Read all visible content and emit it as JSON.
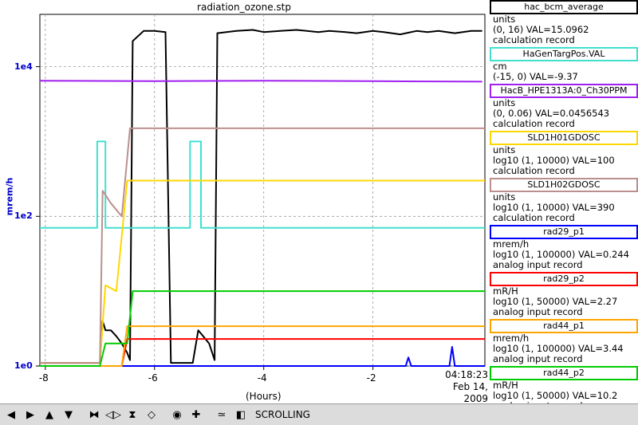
{
  "chart_data": {
    "type": "line",
    "title": "radiation_ozone.stp",
    "xlabel": "(Hours)",
    "ylabel": "mrem/h",
    "xlim": [
      -8.1,
      0.05
    ],
    "ylim": [
      1,
      50000
    ],
    "yscale": "log",
    "x_ticks": [
      "-8",
      "-6",
      "-4",
      "-2"
    ],
    "x_tick_values": [
      -8,
      -6,
      -4,
      -2
    ],
    "y_ticks": [
      "1e0",
      "1e2",
      "1e4"
    ],
    "y_tick_values": [
      1,
      100,
      10000
    ],
    "grid": true,
    "end_time": "04:18:23",
    "end_date": "Feb 14, 2009",
    "series": [
      {
        "name": "hac_bcm_average",
        "color": "#000000",
        "values": [
          [
            -8.1,
            1.1
          ],
          [
            -7.0,
            1.1
          ],
          [
            -6.95,
            4
          ],
          [
            -6.9,
            3
          ],
          [
            -6.8,
            3
          ],
          [
            -6.7,
            2.5
          ],
          [
            -6.6,
            2
          ],
          [
            -6.5,
            1.5
          ],
          [
            -6.45,
            1.2
          ],
          [
            -6.4,
            22000
          ],
          [
            -6.2,
            30000
          ],
          [
            -6.0,
            30000
          ],
          [
            -5.8,
            29000
          ],
          [
            -5.7,
            1.1
          ],
          [
            -5.3,
            1.1
          ],
          [
            -5.2,
            3
          ],
          [
            -5.0,
            2
          ],
          [
            -4.9,
            1.2
          ],
          [
            -4.85,
            28000
          ],
          [
            -4.5,
            30000
          ],
          [
            -4.2,
            31000
          ],
          [
            -4.0,
            29000
          ],
          [
            -3.7,
            30000
          ],
          [
            -3.4,
            31000
          ],
          [
            -3.0,
            29000
          ],
          [
            -2.8,
            30000
          ],
          [
            -2.5,
            29000
          ],
          [
            -2.3,
            28000
          ],
          [
            -2.0,
            30000
          ],
          [
            -1.8,
            29000
          ],
          [
            -1.5,
            27000
          ],
          [
            -1.2,
            30000
          ],
          [
            -1.0,
            29000
          ],
          [
            -0.8,
            30000
          ],
          [
            -0.5,
            28000
          ],
          [
            -0.2,
            30000
          ],
          [
            0.0,
            30000
          ]
        ]
      },
      {
        "name": "HaGenTargPos.VAL",
        "color": "#40e0d0",
        "values": [
          [
            -8.1,
            70
          ],
          [
            -7.05,
            70
          ],
          [
            -7.05,
            1000
          ],
          [
            -6.9,
            1000
          ],
          [
            -6.9,
            70
          ],
          [
            -5.35,
            70
          ],
          [
            -5.35,
            1000
          ],
          [
            -5.15,
            1000
          ],
          [
            -5.15,
            70
          ],
          [
            0.05,
            70
          ]
        ]
      },
      {
        "name": "HacB_HPE1313A:0_Ch30PPM",
        "color": "#a020f0",
        "values": [
          [
            -8.1,
            6500
          ],
          [
            -6.0,
            6400
          ],
          [
            -4.0,
            6500
          ],
          [
            -2.0,
            6400
          ],
          [
            0.0,
            6300
          ]
        ]
      },
      {
        "name": "SLD1H01GDOSC",
        "color": "#ffd700",
        "values": [
          [
            -8.1,
            1.1
          ],
          [
            -7.0,
            1.1
          ],
          [
            -6.9,
            12
          ],
          [
            -6.7,
            10
          ],
          [
            -6.5,
            300
          ],
          [
            -4.0,
            300
          ],
          [
            -2.0,
            300
          ],
          [
            0.05,
            300
          ]
        ]
      },
      {
        "name": "SLD1H02GDOSC",
        "color": "#bc8f8f",
        "values": [
          [
            -8.1,
            1.1
          ],
          [
            -7.0,
            1.1
          ],
          [
            -6.95,
            220
          ],
          [
            -6.8,
            150
          ],
          [
            -6.6,
            100
          ],
          [
            -6.45,
            1500
          ],
          [
            -4.0,
            1500
          ],
          [
            -2.0,
            1500
          ],
          [
            0.05,
            1500
          ]
        ]
      },
      {
        "name": "rad29_p1",
        "color": "#0000ff",
        "values": [
          [
            -8.1,
            1.0
          ],
          [
            -1.4,
            1.0
          ],
          [
            -1.35,
            1.3
          ],
          [
            -1.3,
            1.0
          ],
          [
            -0.6,
            1.0
          ],
          [
            -0.55,
            1.8
          ],
          [
            -0.5,
            1.0
          ],
          [
            0.05,
            1.0
          ]
        ]
      },
      {
        "name": "rad29_p2",
        "color": "#ff0000",
        "values": [
          [
            -8.1,
            1.0
          ],
          [
            -6.6,
            1.0
          ],
          [
            -6.5,
            2.3
          ],
          [
            -4.0,
            2.3
          ],
          [
            -2.0,
            2.3
          ],
          [
            0.05,
            2.3
          ]
        ]
      },
      {
        "name": "rad44_p1",
        "color": "#ffa500",
        "values": [
          [
            -8.1,
            1.0
          ],
          [
            -6.6,
            1.0
          ],
          [
            -6.5,
            3.4
          ],
          [
            -4.0,
            3.4
          ],
          [
            -2.0,
            3.4
          ],
          [
            0.05,
            3.4
          ]
        ]
      },
      {
        "name": "rad44_p2",
        "color": "#00cc00",
        "values": [
          [
            -8.1,
            1.0
          ],
          [
            -7.0,
            1.0
          ],
          [
            -6.9,
            2
          ],
          [
            -6.5,
            2
          ],
          [
            -6.4,
            10
          ],
          [
            -4.0,
            10
          ],
          [
            -2.0,
            10
          ],
          [
            0.05,
            10
          ]
        ]
      }
    ]
  },
  "legend": [
    {
      "name": "hac_bcm_average",
      "color": "#000000",
      "lines": [
        "units",
        "(0, 16) VAL=15.0962",
        "calculation record"
      ]
    },
    {
      "name": "HaGenTargPos.VAL",
      "color": "#40e0d0",
      "lines": [
        "cm",
        "(-15, 0) VAL=-9.37"
      ]
    },
    {
      "name": "HacB_HPE1313A:0_Ch30PPM",
      "color": "#a020f0",
      "lines": [
        "units",
        "(0, 0.06) VAL=0.0456543",
        "calculation record"
      ]
    },
    {
      "name": "SLD1H01GDOSC",
      "color": "#ffd700",
      "lines": [
        "units",
        "log10 (1, 10000) VAL=100",
        "calculation record"
      ]
    },
    {
      "name": "SLD1H02GDOSC",
      "color": "#bc8f8f",
      "lines": [
        "units",
        "log10 (1, 10000) VAL=390",
        "calculation record"
      ]
    },
    {
      "name": "rad29_p1",
      "color": "#0000ff",
      "lines": [
        "mrem/h",
        "log10 (1, 100000) VAL=0.244",
        "analog input record"
      ]
    },
    {
      "name": "rad29_p2",
      "color": "#ff0000",
      "lines": [
        "mR/H",
        "log10 (1, 50000) VAL=2.27",
        "analog input record"
      ]
    },
    {
      "name": "rad44_p1",
      "color": "#ffa500",
      "lines": [
        "mrem/h",
        "log10 (1, 100000) VAL=3.44",
        "analog input record"
      ]
    },
    {
      "name": "rad44_p2",
      "color": "#00cc00",
      "lines": [
        "mR/H",
        "log10 (1, 50000) VAL=10.2",
        "analog input record"
      ]
    }
  ],
  "toolbar": {
    "buttons": [
      {
        "id": "pan-left",
        "icon": "arrow-left-icon",
        "glyph": "◀"
      },
      {
        "id": "pan-right",
        "icon": "arrow-right-icon",
        "glyph": "▶"
      },
      {
        "id": "pan-up",
        "icon": "arrow-up-icon",
        "glyph": "▲"
      },
      {
        "id": "pan-down",
        "icon": "arrow-down-icon",
        "glyph": "▼"
      },
      {
        "id": "zoom-x-in",
        "icon": "zoom-x-in-icon",
        "glyph": "⧓"
      },
      {
        "id": "zoom-x-out",
        "icon": "zoom-x-out-icon",
        "glyph": "◁▷"
      },
      {
        "id": "zoom-y-in",
        "icon": "zoom-y-in-icon",
        "glyph": "⧗"
      },
      {
        "id": "zoom-y-out",
        "icon": "zoom-y-out-icon",
        "glyph": "◇"
      },
      {
        "id": "zoom-auto",
        "icon": "zoom-auto-icon",
        "glyph": "◉"
      },
      {
        "id": "zoom-add",
        "icon": "plus-icon",
        "glyph": "✚"
      },
      {
        "id": "config",
        "icon": "config-icon",
        "glyph": "≃"
      },
      {
        "id": "scroll",
        "icon": "scroll-icon",
        "glyph": "◧"
      }
    ],
    "status": "SCROLLING"
  }
}
